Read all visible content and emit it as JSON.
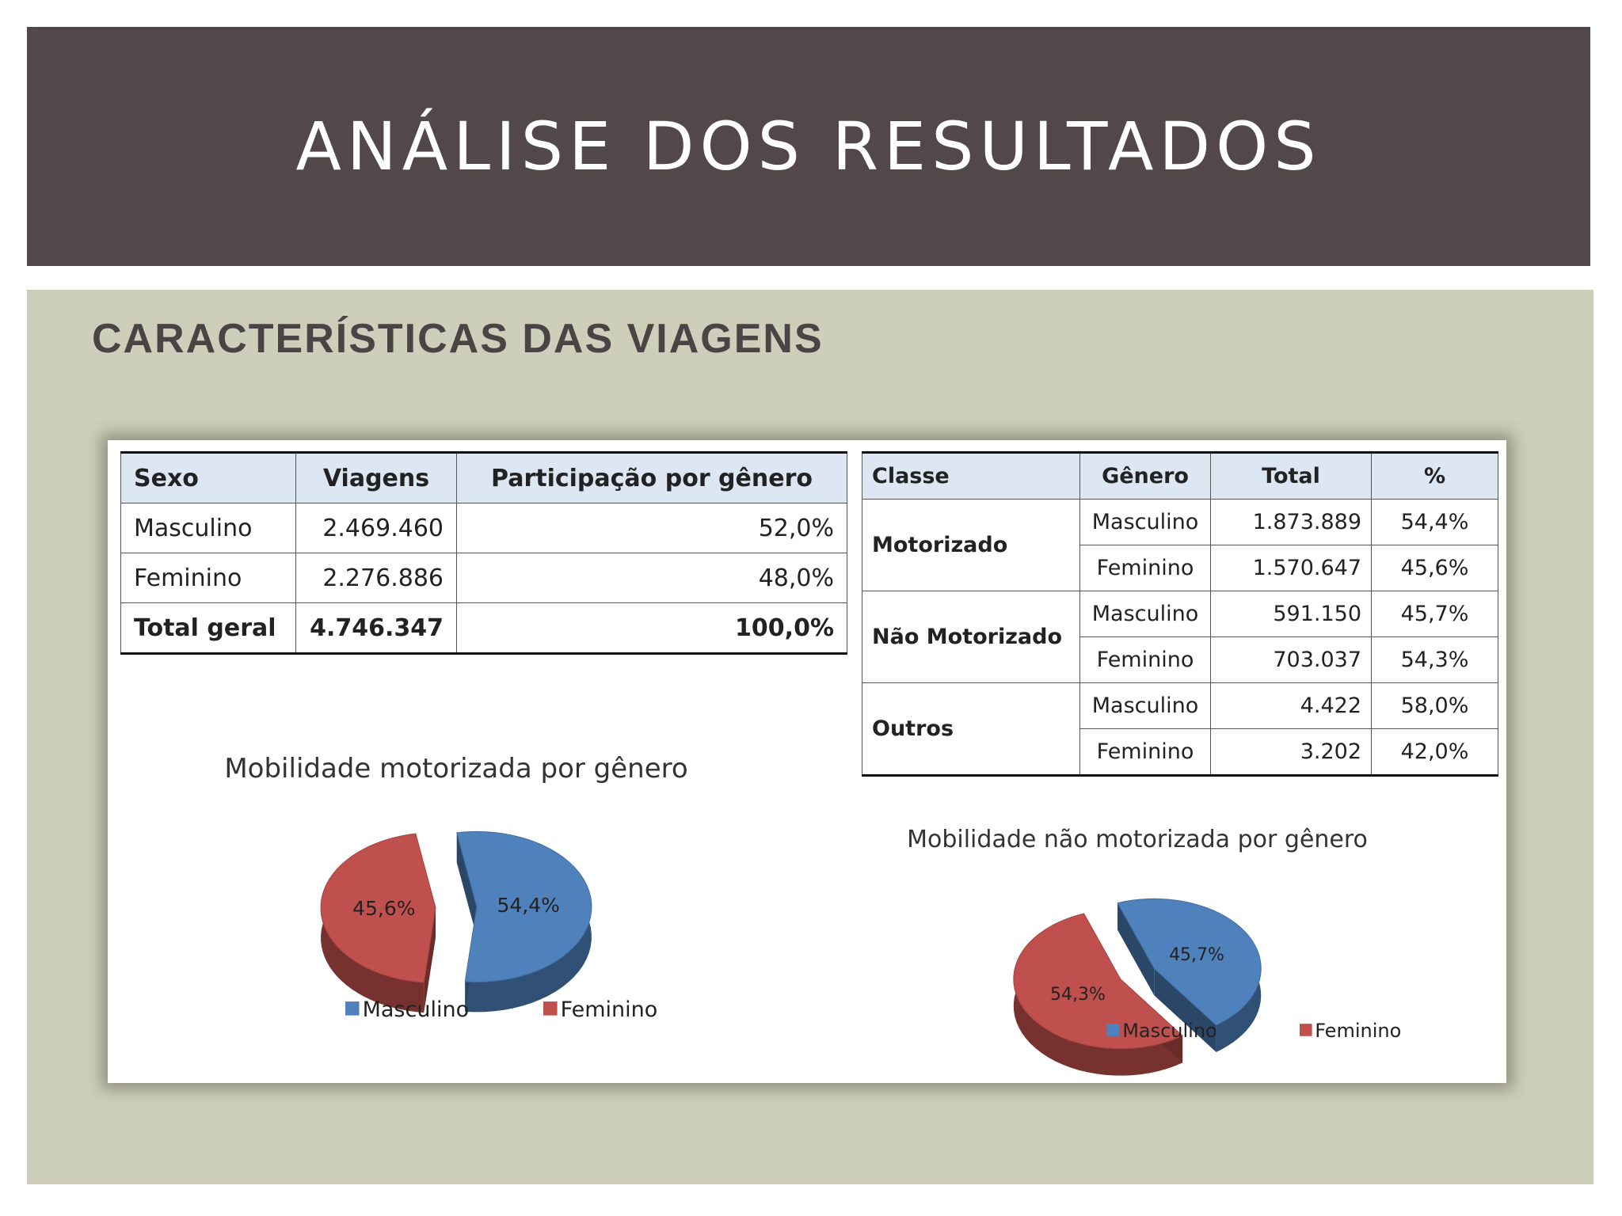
{
  "title": "ANÁLISE DOS RESULTADOS",
  "subtitle": "CARACTERÍSTICAS DAS VIAGENS",
  "table_trips": {
    "headers": [
      "Sexo",
      "Viagens",
      "Participação por gênero"
    ],
    "rows": [
      [
        "Masculino",
        "2.469.460",
        "52,0%"
      ],
      [
        "Feminino",
        "2.276.886",
        "48,0%"
      ],
      [
        "Total geral",
        "4.746.347",
        "100,0%"
      ]
    ]
  },
  "table_class": {
    "headers": [
      "Classe",
      "Gênero",
      "Total",
      "%"
    ],
    "groups": [
      {
        "classe": "Motorizado",
        "rows": [
          [
            "Masculino",
            "1.873.889",
            "54,4%"
          ],
          [
            "Feminino",
            "1.570.647",
            "45,6%"
          ]
        ]
      },
      {
        "classe": "Não Motorizado",
        "rows": [
          [
            "Masculino",
            "591.150",
            "45,7%"
          ],
          [
            "Feminino",
            "703.037",
            "54,3%"
          ]
        ]
      },
      {
        "classe": "Outros",
        "rows": [
          [
            "Masculino",
            "4.422",
            "58,0%"
          ],
          [
            "Feminino",
            "3.202",
            "42,0%"
          ]
        ]
      }
    ]
  },
  "colors": {
    "masculino": "#4f81bd",
    "feminino": "#c0504d"
  },
  "chart_data": [
    {
      "type": "pie",
      "title": "Mobilidade motorizada por gênero",
      "categories": [
        "Masculino",
        "Feminino"
      ],
      "values": [
        54.4,
        45.6
      ],
      "labels": [
        "54,4%",
        "45,6%"
      ],
      "legend": [
        "Masculino",
        "Feminino"
      ],
      "legend_position": "bottom"
    },
    {
      "type": "pie",
      "title": "Mobilidade não motorizada por gênero",
      "categories": [
        "Masculino",
        "Feminino"
      ],
      "values": [
        45.7,
        54.3
      ],
      "labels": [
        "45,7%",
        "54,3%"
      ],
      "legend": [
        "Masculino",
        "Feminino"
      ],
      "legend_position": "bottom"
    }
  ]
}
